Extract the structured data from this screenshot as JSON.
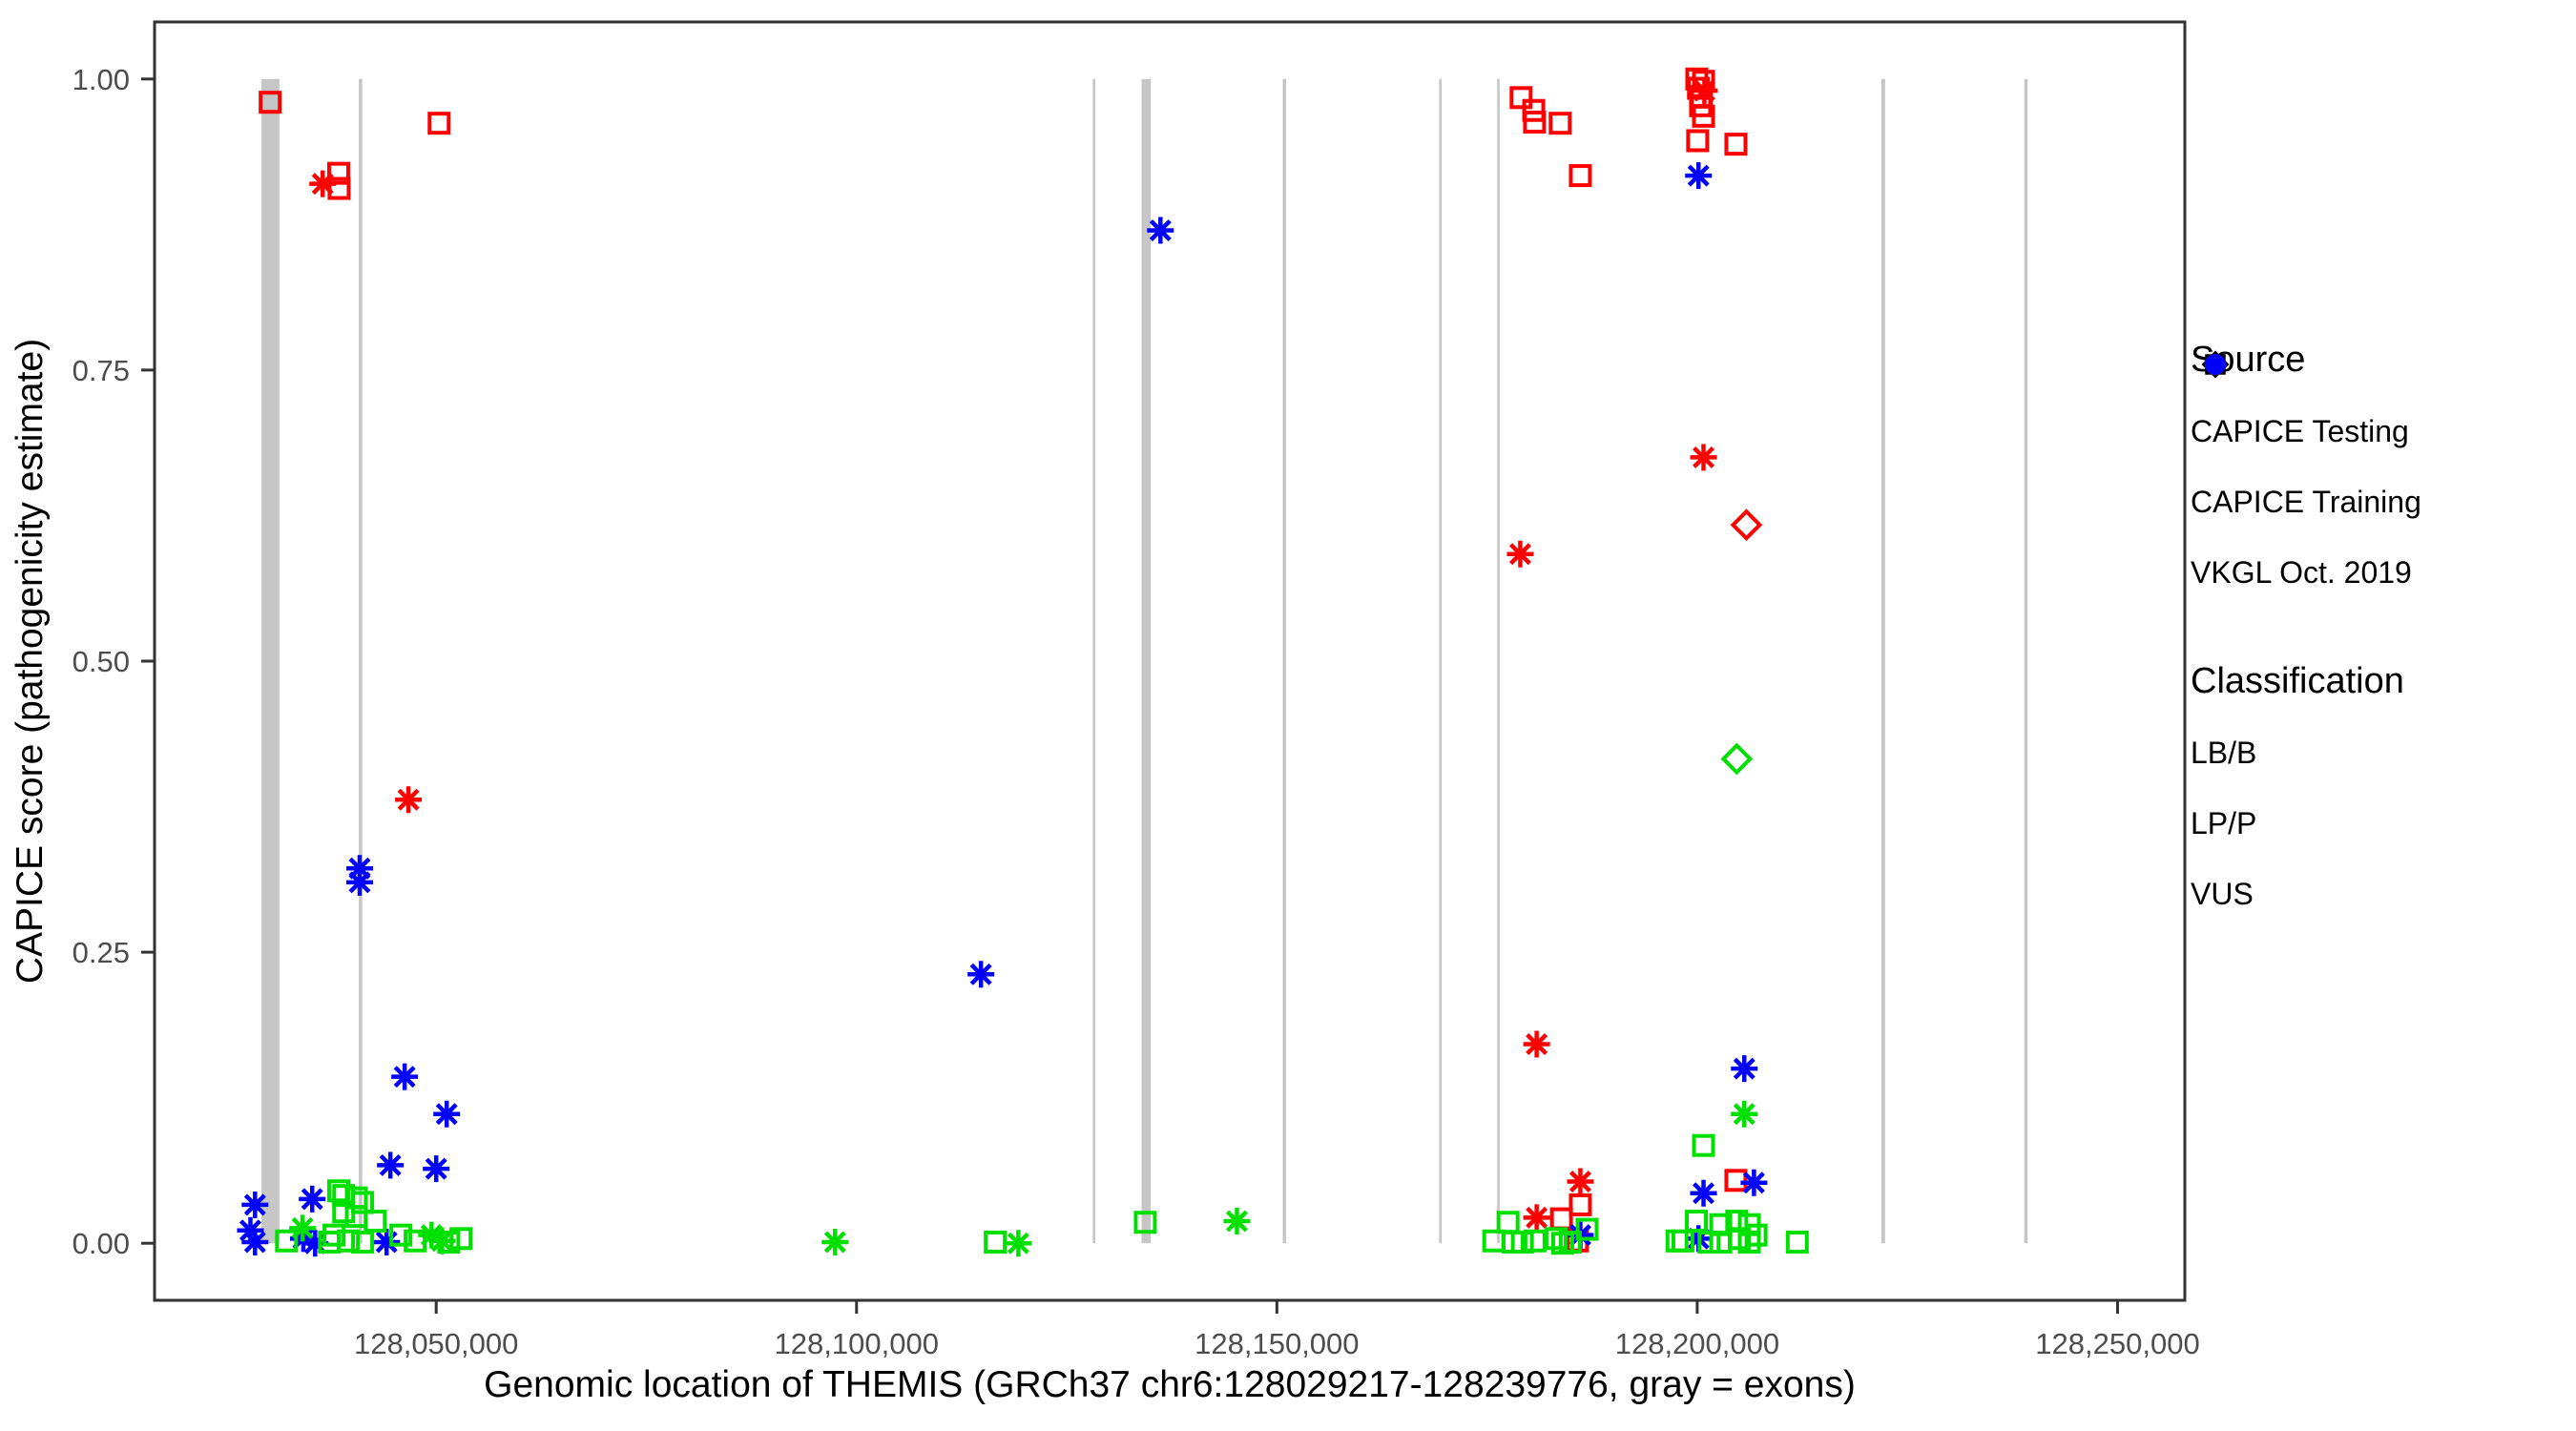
{
  "chart_data": {
    "type": "scatter",
    "title": "",
    "xlabel": "Genomic location of THEMIS (GRCh37 chr6:128029217-128239776, gray = exons)",
    "ylabel": "CAPICE score (pathogenicity estimate)",
    "xlim": [
      128016500,
      128258000
    ],
    "ylim": [
      -0.049,
      1.049
    ],
    "grid": "off",
    "legend_position": "right",
    "x_ticks": [
      {
        "value": 128050000,
        "label": "128,050,000"
      },
      {
        "value": 128100000,
        "label": "128,100,000"
      },
      {
        "value": 128150000,
        "label": "128,150,000"
      },
      {
        "value": 128200000,
        "label": "128,200,000"
      },
      {
        "value": 128250000,
        "label": "128,250,000"
      }
    ],
    "y_ticks": [
      {
        "value": 0.0,
        "label": "0.00"
      },
      {
        "value": 0.25,
        "label": "0.25"
      },
      {
        "value": 0.5,
        "label": "0.50"
      },
      {
        "value": 0.75,
        "label": "0.75"
      },
      {
        "value": 1.0,
        "label": "1.00"
      }
    ],
    "exon_note": "gray vertical bands are exons drawn from score 0 to 1",
    "exons": [
      [
        128029217,
        128031350
      ],
      [
        128040800,
        128041200
      ],
      [
        128128100,
        128128400
      ],
      [
        128133900,
        128135000
      ],
      [
        128150700,
        128151100
      ],
      [
        128169300,
        128169600
      ],
      [
        128176200,
        128176500
      ],
      [
        128221900,
        128222350
      ],
      [
        128238900,
        128239300
      ]
    ],
    "colors": {
      "LB/B": "#00E000",
      "LP/P": "#FF0000",
      "VUS": "#0000FF",
      "exon": "#C6C6C6",
      "axis_text": "#4D4D4D",
      "panel_border": "#333333"
    },
    "shapes": {
      "testing": "diamond",
      "training": "square",
      "vkgl": "asterisk"
    },
    "points_columns": [
      "position",
      "score",
      "source",
      "classification"
    ],
    "points": [
      [
        128030250,
        0.98,
        "training",
        "LP/P"
      ],
      [
        128036500,
        0.91,
        "vkgl",
        "LP/P"
      ],
      [
        128038400,
        0.919,
        "training",
        "LP/P"
      ],
      [
        128038450,
        0.906,
        "training",
        "LP/P"
      ],
      [
        128050350,
        0.962,
        "training",
        "LP/P"
      ],
      [
        128046700,
        0.381,
        "vkgl",
        "LP/P"
      ],
      [
        128040900,
        0.322,
        "vkgl",
        "VUS"
      ],
      [
        128040900,
        0.31,
        "vkgl",
        "VUS"
      ],
      [
        128046250,
        0.143,
        "vkgl",
        "VUS"
      ],
      [
        128051250,
        0.111,
        "vkgl",
        "VUS"
      ],
      [
        128044550,
        0.067,
        "vkgl",
        "VUS"
      ],
      [
        128050000,
        0.064,
        "vkgl",
        "VUS"
      ],
      [
        128035250,
        0.038,
        "vkgl",
        "VUS"
      ],
      [
        128028450,
        0.033,
        "vkgl",
        "VUS"
      ],
      [
        128027900,
        0.011,
        "vkgl",
        "VUS"
      ],
      [
        128028450,
        0.001,
        "vkgl",
        "VUS"
      ],
      [
        128034200,
        0.004,
        "vkgl",
        "VUS"
      ],
      [
        128035600,
        0.0,
        "vkgl",
        "VUS"
      ],
      [
        128044100,
        0.001,
        "vkgl",
        "VUS"
      ],
      [
        128034100,
        0.013,
        "vkgl",
        "LB/B"
      ],
      [
        128032200,
        0.002,
        "training",
        "LB/B"
      ],
      [
        128038400,
        0.045,
        "training",
        "LB/B"
      ],
      [
        128039000,
        0.041,
        "training",
        "LB/B"
      ],
      [
        128040500,
        0.039,
        "training",
        "LB/B"
      ],
      [
        128041250,
        0.035,
        "training",
        "LB/B"
      ],
      [
        128039000,
        0.027,
        "training",
        "LB/B"
      ],
      [
        128040500,
        0.023,
        "training",
        "LB/B"
      ],
      [
        128042750,
        0.019,
        "training",
        "LB/B"
      ],
      [
        128037850,
        0.007,
        "training",
        "LB/B"
      ],
      [
        128039550,
        0.002,
        "training",
        "LB/B"
      ],
      [
        128041250,
        0.001,
        "training",
        "LB/B"
      ],
      [
        128037300,
        0.001,
        "training",
        "LB/B"
      ],
      [
        128045800,
        0.007,
        "training",
        "LB/B"
      ],
      [
        128047500,
        0.002,
        "training",
        "LB/B"
      ],
      [
        128049450,
        0.007,
        "vkgl",
        "LB/B"
      ],
      [
        128050700,
        0.002,
        "vkgl",
        "LB/B"
      ],
      [
        128051500,
        0.001,
        "training",
        "LB/B"
      ],
      [
        128052950,
        0.004,
        "training",
        "LB/B"
      ],
      [
        128097450,
        0.001,
        "vkgl",
        "LB/B"
      ],
      [
        128114800,
        0.231,
        "vkgl",
        "VUS"
      ],
      [
        128116500,
        0.001,
        "training",
        "LB/B"
      ],
      [
        128119250,
        0.0,
        "vkgl",
        "LB/B"
      ],
      [
        128134350,
        0.018,
        "training",
        "LB/B"
      ],
      [
        128136150,
        0.87,
        "vkgl",
        "VUS"
      ],
      [
        128145250,
        0.019,
        "vkgl",
        "LB/B"
      ],
      [
        128179050,
        0.984,
        "training",
        "LP/P"
      ],
      [
        128180550,
        0.973,
        "training",
        "LP/P"
      ],
      [
        128180650,
        0.963,
        "training",
        "LP/P"
      ],
      [
        128183700,
        0.962,
        "training",
        "LP/P"
      ],
      [
        128186100,
        0.917,
        "training",
        "LP/P"
      ],
      [
        128178950,
        0.592,
        "vkgl",
        "LP/P"
      ],
      [
        128180900,
        0.171,
        "vkgl",
        "LP/P"
      ],
      [
        128186100,
        0.053,
        "vkgl",
        "LP/P"
      ],
      [
        128186100,
        0.033,
        "training",
        "LP/P"
      ],
      [
        128180900,
        0.022,
        "vkgl",
        "LP/P"
      ],
      [
        128183850,
        0.021,
        "training",
        "LP/P"
      ],
      [
        128185750,
        0.002,
        "training",
        "LP/P"
      ],
      [
        128186100,
        0.007,
        "vkgl",
        "VUS"
      ],
      [
        128175800,
        0.002,
        "training",
        "LB/B"
      ],
      [
        128177500,
        0.018,
        "training",
        "LB/B"
      ],
      [
        128178100,
        0.001,
        "training",
        "LB/B"
      ],
      [
        128179200,
        0.001,
        "training",
        "LB/B"
      ],
      [
        128180700,
        0.002,
        "training",
        "LB/B"
      ],
      [
        128183200,
        0.004,
        "training",
        "LB/B"
      ],
      [
        128184000,
        0.0,
        "training",
        "LB/B"
      ],
      [
        128184900,
        0.001,
        "training",
        "LB/B"
      ],
      [
        128186900,
        0.012,
        "training",
        "LB/B"
      ],
      [
        128199950,
        1.0,
        "training",
        "LP/P"
      ],
      [
        128200750,
        0.998,
        "training",
        "LP/P"
      ],
      [
        128200150,
        0.992,
        "training",
        "LP/P"
      ],
      [
        128200850,
        0.99,
        "vkgl",
        "LP/P"
      ],
      [
        128200500,
        0.985,
        "training",
        "LP/P"
      ],
      [
        128200400,
        0.977,
        "training",
        "LP/P"
      ],
      [
        128200750,
        0.968,
        "training",
        "LP/P"
      ],
      [
        128200050,
        0.947,
        "training",
        "LP/P"
      ],
      [
        128204600,
        0.944,
        "training",
        "LP/P"
      ],
      [
        128200150,
        0.917,
        "vkgl",
        "VUS"
      ],
      [
        128200750,
        0.675,
        "vkgl",
        "LP/P"
      ],
      [
        128205850,
        0.617,
        "testing",
        "LP/P"
      ],
      [
        128204700,
        0.416,
        "testing",
        "LB/B"
      ],
      [
        128205600,
        0.15,
        "vkgl",
        "VUS"
      ],
      [
        128205600,
        0.111,
        "vkgl",
        "LB/B"
      ],
      [
        128200750,
        0.084,
        "training",
        "LB/B"
      ],
      [
        128204600,
        0.054,
        "training",
        "LP/P"
      ],
      [
        128206750,
        0.052,
        "vkgl",
        "VUS"
      ],
      [
        128200750,
        0.043,
        "vkgl",
        "VUS"
      ],
      [
        128200150,
        0.004,
        "vkgl",
        "VUS"
      ],
      [
        128197600,
        0.002,
        "training",
        "LB/B"
      ],
      [
        128198300,
        0.002,
        "training",
        "LB/B"
      ],
      [
        128199900,
        0.019,
        "training",
        "LB/B"
      ],
      [
        128201400,
        0.001,
        "training",
        "LB/B"
      ],
      [
        128202800,
        0.016,
        "training",
        "LB/B"
      ],
      [
        128202800,
        0.001,
        "training",
        "LB/B"
      ],
      [
        128204700,
        0.019,
        "training",
        "LB/B"
      ],
      [
        128205000,
        0.004,
        "training",
        "LB/B"
      ],
      [
        128206200,
        0.016,
        "training",
        "LB/B"
      ],
      [
        128206200,
        0.001,
        "training",
        "LB/B"
      ],
      [
        128207000,
        0.007,
        "training",
        "LB/B"
      ],
      [
        128211900,
        0.001,
        "training",
        "LB/B"
      ]
    ]
  },
  "legend": {
    "source": {
      "title": "Source",
      "items": [
        {
          "shape": "diamond",
          "label": "CAPICE Testing"
        },
        {
          "shape": "square",
          "label": "CAPICE Training"
        },
        {
          "shape": "asterisk",
          "label": "VKGL Oct. 2019"
        }
      ]
    },
    "classification": {
      "title": "Classification",
      "items": [
        {
          "color_key": "LB/B",
          "label": "LB/B"
        },
        {
          "color_key": "LP/P",
          "label": "LP/P"
        },
        {
          "color_key": "VUS",
          "label": "VUS"
        }
      ]
    }
  }
}
